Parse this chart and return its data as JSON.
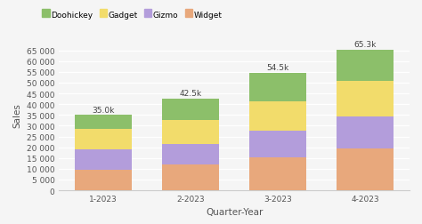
{
  "categories": [
    "1-2023",
    "2-2023",
    "3-2023",
    "4-2023"
  ],
  "totals_labels": [
    "35.0k",
    "42.5k",
    "54.5k",
    "65.3k"
  ],
  "series": [
    {
      "name": "Widget",
      "color": "#E8A87C",
      "values": [
        9500,
        12000,
        15500,
        19500
      ]
    },
    {
      "name": "Gizmo",
      "color": "#B39DDB",
      "values": [
        9500,
        9500,
        12000,
        15000
      ]
    },
    {
      "name": "Gadget",
      "color": "#F2DC6B",
      "values": [
        9500,
        11000,
        14000,
        16500
      ]
    },
    {
      "name": "Doohickey",
      "color": "#8CBF6A",
      "values": [
        6500,
        10000,
        13000,
        14300
      ]
    }
  ],
  "xlabel": "Quarter-Year",
  "ylabel": "Sales",
  "ylim": [
    0,
    70000
  ],
  "yticks": [
    0,
    5000,
    10000,
    15000,
    20000,
    25000,
    30000,
    35000,
    40000,
    45000,
    50000,
    55000,
    60000,
    65000
  ],
  "ytick_labels": [
    "0",
    "5 000",
    "10 000",
    "15 000",
    "20 000",
    "25 000",
    "30 000",
    "35 000",
    "40 000",
    "45 000",
    "50 000",
    "55 000",
    "60 000",
    "65 000"
  ],
  "background_color": "#f5f5f5",
  "bar_width": 0.65,
  "annotation_fontsize": 6.5,
  "label_fontsize": 7.5,
  "tick_fontsize": 6.5
}
